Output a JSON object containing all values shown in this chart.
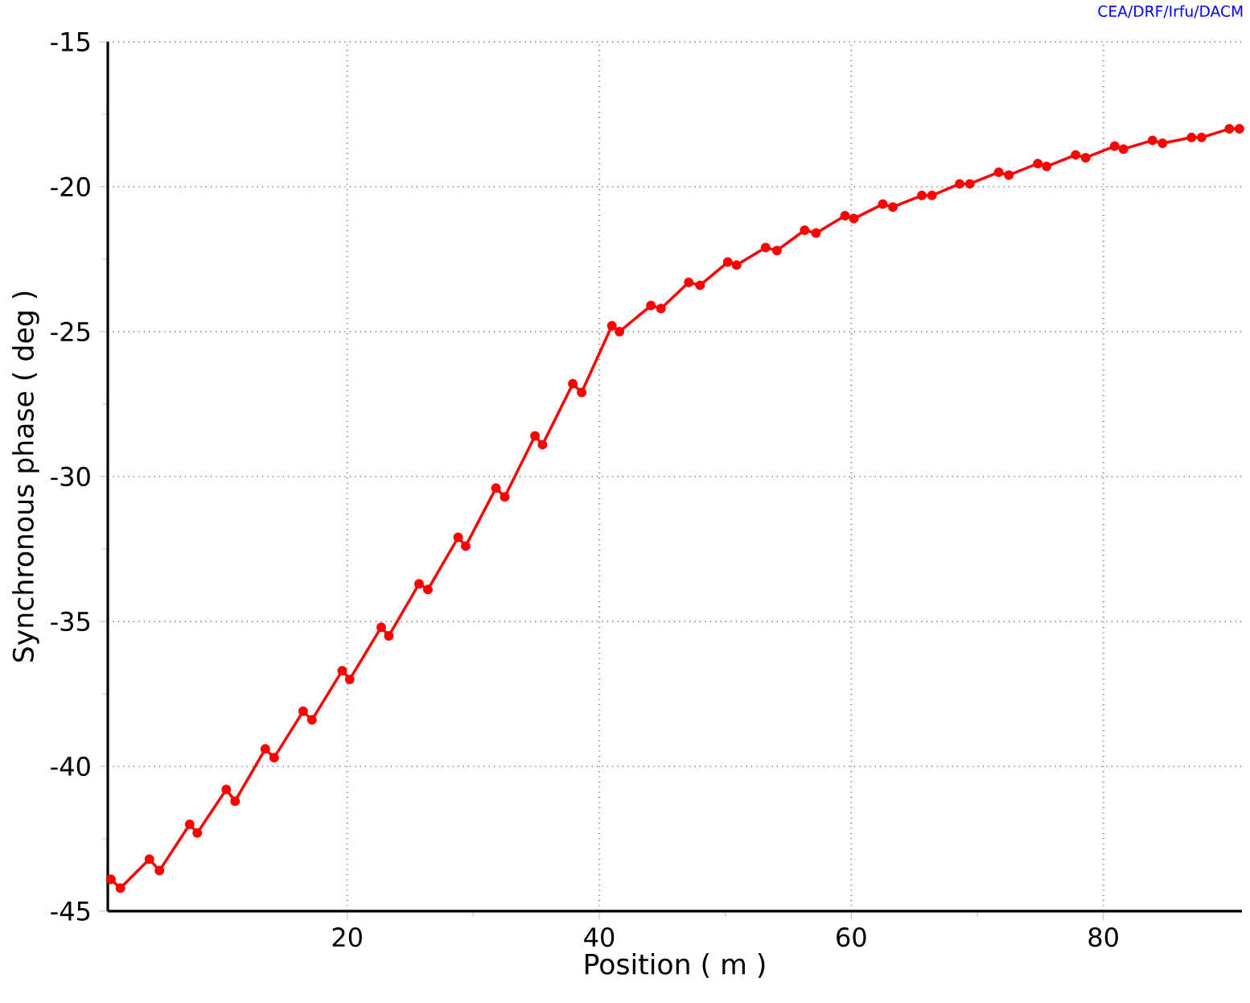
{
  "chart_data": {
    "type": "line",
    "xlabel": "Position ( m )",
    "ylabel": "Synchronous phase ( deg )",
    "annotations": [
      "CEA/DRF/Irfu/DACM"
    ],
    "x": [
      1.25,
      2.0,
      4.3,
      5.1,
      7.5,
      8.1,
      10.4,
      11.1,
      13.5,
      14.2,
      16.5,
      17.2,
      19.6,
      20.2,
      22.7,
      23.3,
      25.7,
      26.4,
      28.8,
      29.4,
      31.8,
      32.5,
      34.9,
      35.5,
      37.9,
      38.6,
      41.0,
      41.6,
      44.1,
      44.9,
      47.1,
      48.0,
      50.2,
      50.9,
      53.2,
      54.1,
      56.3,
      57.2,
      59.5,
      60.2,
      62.5,
      63.3,
      65.6,
      66.4,
      68.6,
      69.4,
      71.7,
      72.5,
      74.8,
      75.5,
      77.8,
      78.6,
      80.9,
      81.6,
      83.9,
      84.7,
      87.0,
      87.8,
      90.0,
      90.8
    ],
    "series": [
      {
        "color": "#ff0000",
        "values": [
          -43.9,
          -44.2,
          -43.2,
          -43.6,
          -42.0,
          -42.3,
          -40.8,
          -41.2,
          -39.4,
          -39.7,
          -38.1,
          -38.4,
          -36.7,
          -37.0,
          -35.2,
          -35.5,
          -33.7,
          -33.9,
          -32.1,
          -32.4,
          -30.4,
          -30.7,
          -28.6,
          -28.9,
          -26.8,
          -27.1,
          -24.8,
          -25.0,
          -24.1,
          -24.2,
          -23.3,
          -23.4,
          -22.6,
          -22.7,
          -22.1,
          -22.2,
          -21.5,
          -21.6,
          -21.0,
          -21.1,
          -20.6,
          -20.7,
          -20.3,
          -20.3,
          -19.9,
          -19.9,
          -19.5,
          -19.6,
          -19.2,
          -19.3,
          -18.9,
          -19.0,
          -18.6,
          -18.7,
          -18.4,
          -18.5,
          -18.3,
          -18.3,
          -18.0,
          -18.0
        ]
      }
    ],
    "xlim": [
      1,
      91
    ],
    "ylim": [
      -45,
      -15
    ],
    "xticks": [
      20,
      40,
      60,
      80
    ],
    "yticks": [
      -45,
      -40,
      -35,
      -30,
      -25,
      -20,
      -15
    ],
    "grid": true,
    "marker": "circle",
    "line_style": "solid"
  }
}
